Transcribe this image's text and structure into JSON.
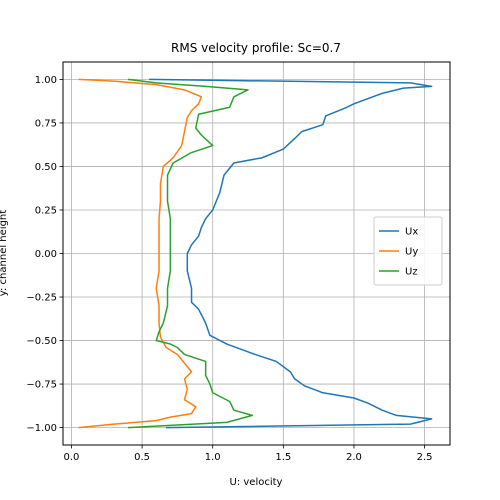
{
  "chart_data": {
    "type": "line",
    "title": "RMS velocity profile: Sc=0.7",
    "xlabel": "U: velocity",
    "ylabel": "y: channel height",
    "xlim": [
      -0.06,
      2.68
    ],
    "ylim": [
      -1.1,
      1.1
    ],
    "xticks": [
      0.0,
      0.5,
      1.0,
      1.5,
      2.0,
      2.5
    ],
    "xtick_labels": [
      "0.0",
      "0.5",
      "1.0",
      "1.5",
      "2.0",
      "2.5"
    ],
    "yticks": [
      -1.0,
      -0.75,
      -0.5,
      -0.25,
      0.0,
      0.25,
      0.5,
      0.75,
      1.0
    ],
    "ytick_labels": [
      "−1.00",
      "−0.75",
      "−0.50",
      "−0.25",
      "0.00",
      "0.25",
      "0.50",
      "0.75",
      "1.00"
    ],
    "grid": true,
    "legend_position": "right",
    "series": [
      {
        "name": "Ux",
        "color": "#1f77b4",
        "points": [
          [
            0.67,
            -1.0
          ],
          [
            2.4,
            -0.98
          ],
          [
            2.55,
            -0.95
          ],
          [
            2.3,
            -0.93
          ],
          [
            2.2,
            -0.9
          ],
          [
            2.1,
            -0.86
          ],
          [
            2.0,
            -0.83
          ],
          [
            1.78,
            -0.8
          ],
          [
            1.65,
            -0.76
          ],
          [
            1.58,
            -0.72
          ],
          [
            1.55,
            -0.68
          ],
          [
            1.45,
            -0.62
          ],
          [
            1.3,
            -0.58
          ],
          [
            1.1,
            -0.52
          ],
          [
            0.98,
            -0.47
          ],
          [
            0.95,
            -0.4
          ],
          [
            0.9,
            -0.32
          ],
          [
            0.85,
            -0.28
          ],
          [
            0.85,
            -0.2
          ],
          [
            0.82,
            -0.1
          ],
          [
            0.82,
            0.0
          ],
          [
            0.85,
            0.05
          ],
          [
            0.9,
            0.1
          ],
          [
            0.92,
            0.15
          ],
          [
            0.95,
            0.2
          ],
          [
            1.0,
            0.25
          ],
          [
            1.05,
            0.35
          ],
          [
            1.08,
            0.45
          ],
          [
            1.15,
            0.52
          ],
          [
            1.35,
            0.55
          ],
          [
            1.5,
            0.6
          ],
          [
            1.58,
            0.66
          ],
          [
            1.63,
            0.7
          ],
          [
            1.78,
            0.74
          ],
          [
            1.8,
            0.79
          ],
          [
            1.95,
            0.84
          ],
          [
            2.0,
            0.86
          ],
          [
            2.1,
            0.89
          ],
          [
            2.2,
            0.92
          ],
          [
            2.35,
            0.95
          ],
          [
            2.55,
            0.96
          ],
          [
            2.4,
            0.98
          ],
          [
            0.55,
            1.0
          ]
        ]
      },
      {
        "name": "Uy",
        "color": "#ff7f0e",
        "points": [
          [
            0.05,
            -1.0
          ],
          [
            0.3,
            -0.98
          ],
          [
            0.6,
            -0.96
          ],
          [
            0.7,
            -0.94
          ],
          [
            0.85,
            -0.92
          ],
          [
            0.88,
            -0.88
          ],
          [
            0.8,
            -0.84
          ],
          [
            0.82,
            -0.78
          ],
          [
            0.8,
            -0.72
          ],
          [
            0.85,
            -0.68
          ],
          [
            0.8,
            -0.63
          ],
          [
            0.75,
            -0.58
          ],
          [
            0.67,
            -0.54
          ],
          [
            0.63,
            -0.48
          ],
          [
            0.62,
            -0.4
          ],
          [
            0.62,
            -0.3
          ],
          [
            0.6,
            -0.2
          ],
          [
            0.62,
            -0.1
          ],
          [
            0.62,
            0.0
          ],
          [
            0.62,
            0.1
          ],
          [
            0.62,
            0.2
          ],
          [
            0.63,
            0.3
          ],
          [
            0.63,
            0.4
          ],
          [
            0.65,
            0.5
          ],
          [
            0.72,
            0.55
          ],
          [
            0.78,
            0.62
          ],
          [
            0.8,
            0.7
          ],
          [
            0.82,
            0.78
          ],
          [
            0.85,
            0.82
          ],
          [
            0.9,
            0.86
          ],
          [
            0.92,
            0.9
          ],
          [
            0.8,
            0.94
          ],
          [
            0.6,
            0.97
          ],
          [
            0.3,
            0.99
          ],
          [
            0.05,
            1.0
          ]
        ]
      },
      {
        "name": "Uz",
        "color": "#2ca02c",
        "points": [
          [
            0.4,
            -1.0
          ],
          [
            1.1,
            -0.97
          ],
          [
            1.28,
            -0.93
          ],
          [
            1.15,
            -0.9
          ],
          [
            1.12,
            -0.85
          ],
          [
            1.0,
            -0.8
          ],
          [
            0.98,
            -0.75
          ],
          [
            0.95,
            -0.7
          ],
          [
            0.95,
            -0.62
          ],
          [
            0.8,
            -0.58
          ],
          [
            0.75,
            -0.54
          ],
          [
            0.7,
            -0.52
          ],
          [
            0.6,
            -0.5
          ],
          [
            0.62,
            -0.45
          ],
          [
            0.65,
            -0.4
          ],
          [
            0.68,
            -0.3
          ],
          [
            0.68,
            -0.2
          ],
          [
            0.7,
            -0.1
          ],
          [
            0.7,
            0.0
          ],
          [
            0.7,
            0.1
          ],
          [
            0.7,
            0.2
          ],
          [
            0.68,
            0.3
          ],
          [
            0.68,
            0.4
          ],
          [
            0.68,
            0.45
          ],
          [
            0.72,
            0.52
          ],
          [
            0.85,
            0.58
          ],
          [
            1.0,
            0.62
          ],
          [
            0.92,
            0.68
          ],
          [
            0.88,
            0.72
          ],
          [
            0.9,
            0.8
          ],
          [
            1.12,
            0.84
          ],
          [
            1.15,
            0.9
          ],
          [
            1.25,
            0.94
          ],
          [
            0.95,
            0.96
          ],
          [
            0.6,
            0.98
          ],
          [
            0.4,
            1.0
          ]
        ]
      }
    ]
  }
}
